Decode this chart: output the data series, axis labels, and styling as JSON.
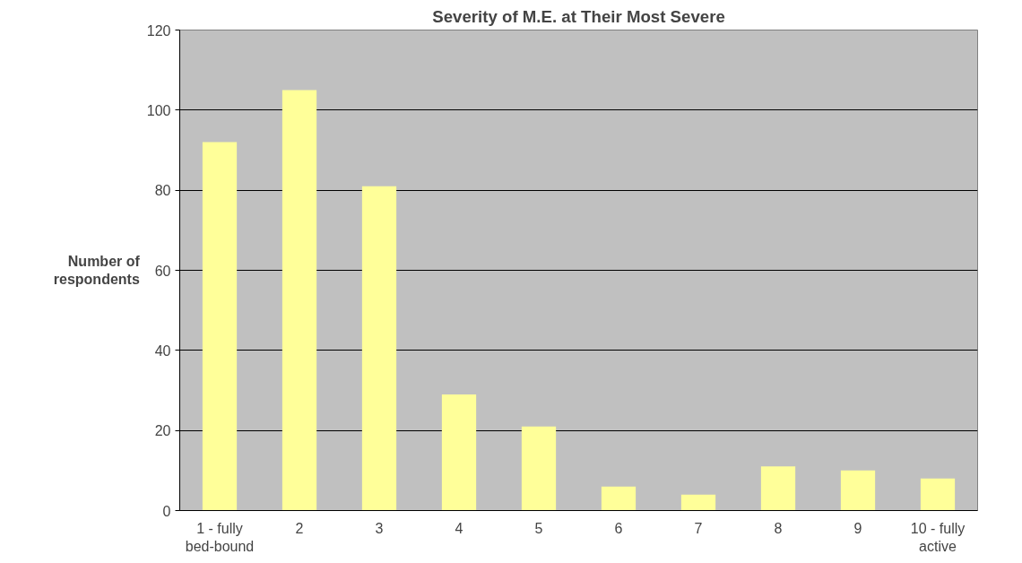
{
  "chart_data": {
    "type": "bar",
    "title": "Severity of M.E. at Their Most Severe",
    "ylabel": "Number of respondents",
    "categories": [
      "1 - fully bed-bound",
      "2",
      "3",
      "4",
      "5",
      "6",
      "7",
      "8",
      "9",
      "10 - fully active"
    ],
    "values": [
      92,
      105,
      81,
      29,
      21,
      6,
      4,
      11,
      10,
      8
    ],
    "color": "#ffff99",
    "ylim": [
      0,
      120
    ],
    "yticks": [
      0,
      20,
      40,
      60,
      80,
      100,
      120
    ],
    "grid": "y"
  }
}
